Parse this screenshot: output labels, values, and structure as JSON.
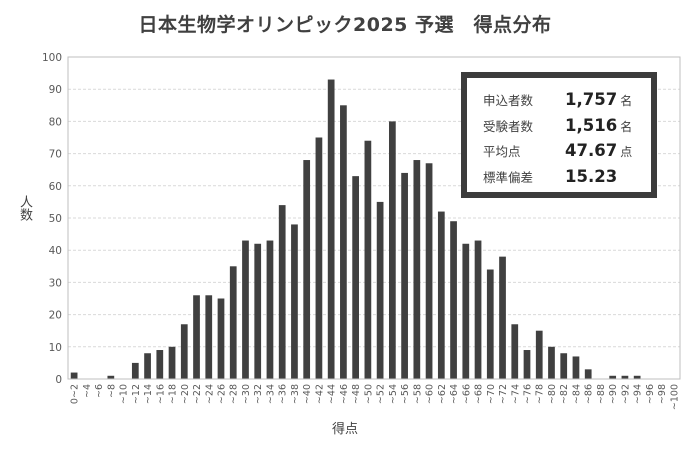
{
  "chart_data": {
    "type": "bar",
    "title": "日本生物学オリンピック2025 予選　得点分布",
    "xlabel": "得点",
    "ylabel": "人数",
    "ylim": [
      0,
      100
    ],
    "yticks": [
      "0",
      "10",
      "20",
      "30",
      "40",
      "50",
      "60",
      "70",
      "80",
      "90",
      "100"
    ],
    "grid": true,
    "categories": [
      "0~2",
      "~4",
      "~6",
      "~8",
      "~10",
      "~12",
      "~14",
      "~16",
      "~18",
      "~20",
      "~22",
      "~24",
      "~26",
      "~28",
      "~30",
      "~32",
      "~34",
      "~36",
      "~38",
      "~40",
      "~42",
      "~44",
      "~46",
      "~48",
      "~50",
      "~52",
      "~54",
      "~56",
      "~58",
      "~60",
      "~62",
      "~64",
      "~66",
      "~68",
      "~70",
      "~72",
      "~74",
      "~76",
      "~78",
      "~80",
      "~82",
      "~84",
      "~86",
      "~88",
      "~90",
      "~92",
      "~94",
      "~96",
      "~98",
      "~100"
    ],
    "values": [
      2,
      0,
      0,
      1,
      0,
      5,
      8,
      9,
      10,
      17,
      26,
      26,
      25,
      35,
      43,
      42,
      43,
      54,
      48,
      68,
      75,
      93,
      85,
      63,
      74,
      55,
      80,
      64,
      68,
      67,
      52,
      49,
      42,
      43,
      34,
      38,
      17,
      9,
      15,
      10,
      8,
      7,
      3,
      0,
      1,
      1,
      1,
      0,
      0,
      0
    ],
    "bar_color": "#404040"
  },
  "stats": [
    {
      "label": "申込者数",
      "value": "1,757",
      "unit": "名"
    },
    {
      "label": "受験者数",
      "value": "1,516",
      "unit": "名"
    },
    {
      "label": "平均点",
      "value": "47.67",
      "unit": "点"
    },
    {
      "label": "標準偏差",
      "value": "15.23",
      "unit": ""
    }
  ]
}
